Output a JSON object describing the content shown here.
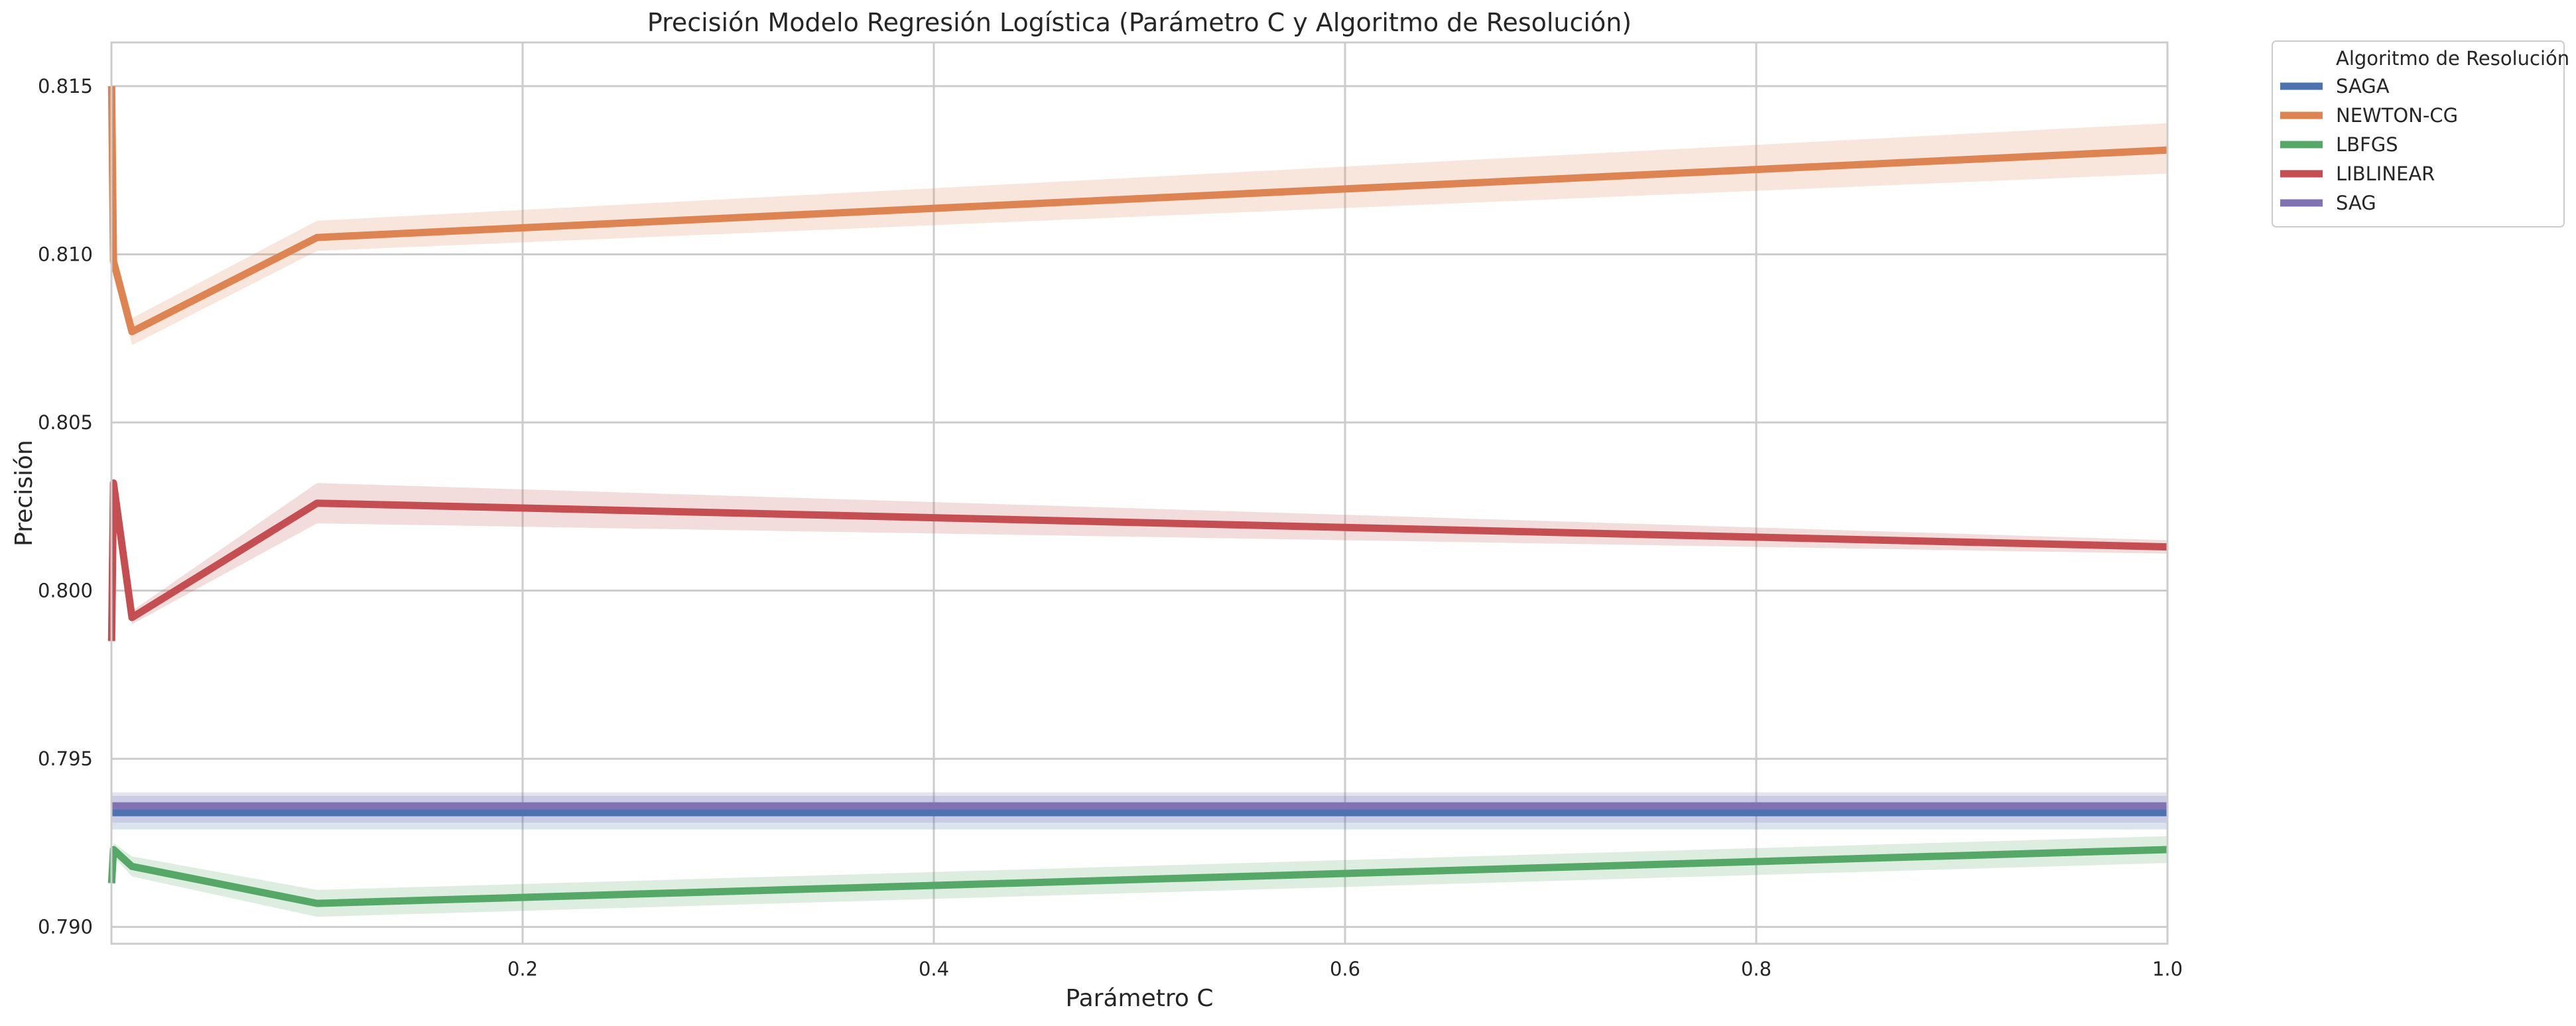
{
  "chart_data": {
    "type": "line",
    "title": "Precisión Modelo Regresión Logística (Parámetro C y Algoritmo de Resolución)",
    "xlabel": "Parámetro C",
    "ylabel": "Precisión",
    "xlim": [
      0.0,
      1.0
    ],
    "ylim": [
      0.7895,
      0.8163
    ],
    "x_ticks": [
      0.2,
      0.4,
      0.6,
      0.8,
      1.0
    ],
    "x_tick_labels": [
      "0.2",
      "0.4",
      "0.6",
      "0.8",
      "1.0"
    ],
    "y_ticks": [
      0.79,
      0.795,
      0.8,
      0.805,
      0.81,
      0.815
    ],
    "y_tick_labels": [
      "0.790",
      "0.795",
      "0.800",
      "0.805",
      "0.810",
      "0.815"
    ],
    "grid": true,
    "legend": {
      "title": "Algoritmo de Resolución",
      "placement": "outside-top-right"
    },
    "series": [
      {
        "name": "SAGA",
        "color": "#4c72b0",
        "x": [
          0.0001,
          0.001,
          0.01,
          0.1,
          1.0
        ],
        "y": [
          0.7934,
          0.7934,
          0.7934,
          0.7934,
          0.7934
        ],
        "ci_lower": [
          0.7929,
          0.7929,
          0.7929,
          0.7929,
          0.7929
        ],
        "ci_upper": [
          0.7939,
          0.7939,
          0.7939,
          0.7939,
          0.7939
        ]
      },
      {
        "name": "NEWTON-CG",
        "color": "#dd8452",
        "x": [
          0.0001,
          0.001,
          0.01,
          0.1,
          1.0
        ],
        "y": [
          0.815,
          0.8098,
          0.8077,
          0.8105,
          0.8131
        ],
        "ci_lower": [
          0.8148,
          0.8096,
          0.8073,
          0.8101,
          0.8124
        ],
        "ci_upper": [
          0.8152,
          0.81,
          0.8081,
          0.811,
          0.8139
        ]
      },
      {
        "name": "LBFGS",
        "color": "#55a868",
        "x": [
          0.0001,
          0.001,
          0.01,
          0.1,
          1.0
        ],
        "y": [
          0.7913,
          0.7923,
          0.7918,
          0.7907,
          0.7923
        ],
        "ci_lower": [
          0.7911,
          0.7921,
          0.7915,
          0.7903,
          0.7919
        ],
        "ci_upper": [
          0.7915,
          0.7925,
          0.7921,
          0.7911,
          0.7927
        ]
      },
      {
        "name": "LIBLINEAR",
        "color": "#c44e52",
        "x": [
          0.0001,
          0.001,
          0.01,
          0.1,
          1.0
        ],
        "y": [
          0.7985,
          0.8032,
          0.7992,
          0.8026,
          0.8013
        ],
        "ci_lower": [
          0.7983,
          0.803,
          0.799,
          0.802,
          0.8011
        ],
        "ci_upper": [
          0.7987,
          0.8034,
          0.7994,
          0.8032,
          0.8015
        ]
      },
      {
        "name": "SAG",
        "color": "#8172b3",
        "x": [
          0.0001,
          0.001,
          0.01,
          0.1,
          1.0
        ],
        "y": [
          0.7936,
          0.7936,
          0.7936,
          0.7936,
          0.7936
        ],
        "ci_lower": [
          0.7931,
          0.7931,
          0.7931,
          0.7931,
          0.7931
        ],
        "ci_upper": [
          0.794,
          0.794,
          0.794,
          0.794,
          0.794
        ]
      }
    ]
  }
}
